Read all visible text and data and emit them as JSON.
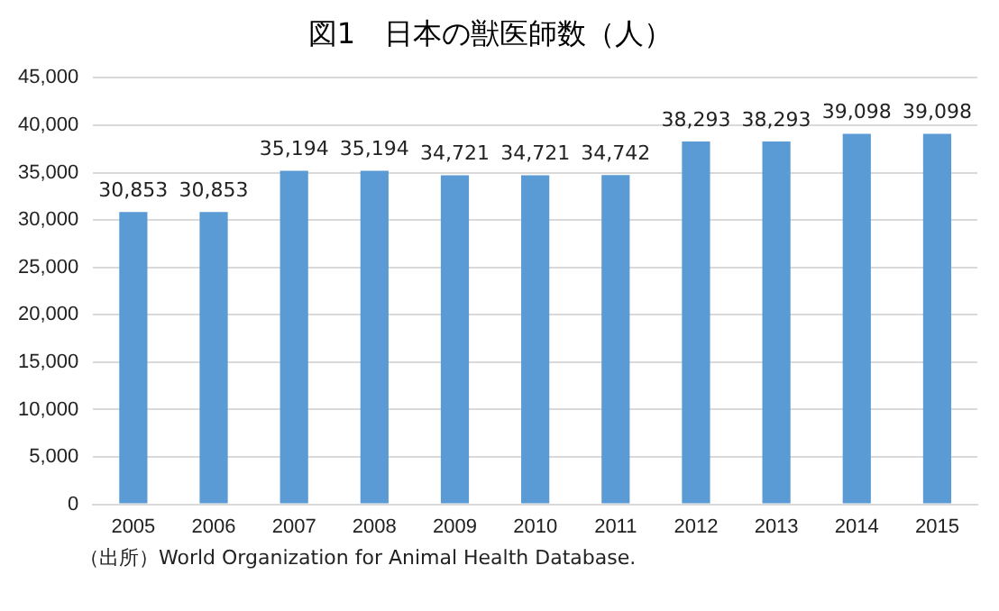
{
  "chart_data": {
    "type": "bar",
    "title": "図1　日本の獣医師数（人）",
    "categories": [
      "2005",
      "2006",
      "2007",
      "2008",
      "2009",
      "2010",
      "2011",
      "2012",
      "2013",
      "2014",
      "2015"
    ],
    "values": [
      30853,
      30853,
      35194,
      35194,
      34721,
      34721,
      34742,
      38293,
      38293,
      39098,
      39098
    ],
    "value_labels": [
      "30,853",
      "30,853",
      "35,194",
      "35,194",
      "34,721",
      "34,721",
      "34,742",
      "38,293",
      "38,293",
      "39,098",
      "39,098"
    ],
    "color": "#5b9bd5",
    "ylim": [
      0,
      45000
    ],
    "yticks": [
      {
        "value": 0,
        "label": "0"
      },
      {
        "value": 5000,
        "label": "5,000"
      },
      {
        "value": 10000,
        "label": "10,000"
      },
      {
        "value": 15000,
        "label": "15,000"
      },
      {
        "value": 20000,
        "label": "20,000"
      },
      {
        "value": 25000,
        "label": "25,000"
      },
      {
        "value": 30000,
        "label": "30,000"
      },
      {
        "value": 35000,
        "label": "35,000"
      },
      {
        "value": 40000,
        "label": "40,000"
      },
      {
        "value": 45000,
        "label": "45,000"
      }
    ],
    "grid": true,
    "legend": false,
    "annotations": [
      "（出所）World Organization for Animal Health Database."
    ]
  }
}
